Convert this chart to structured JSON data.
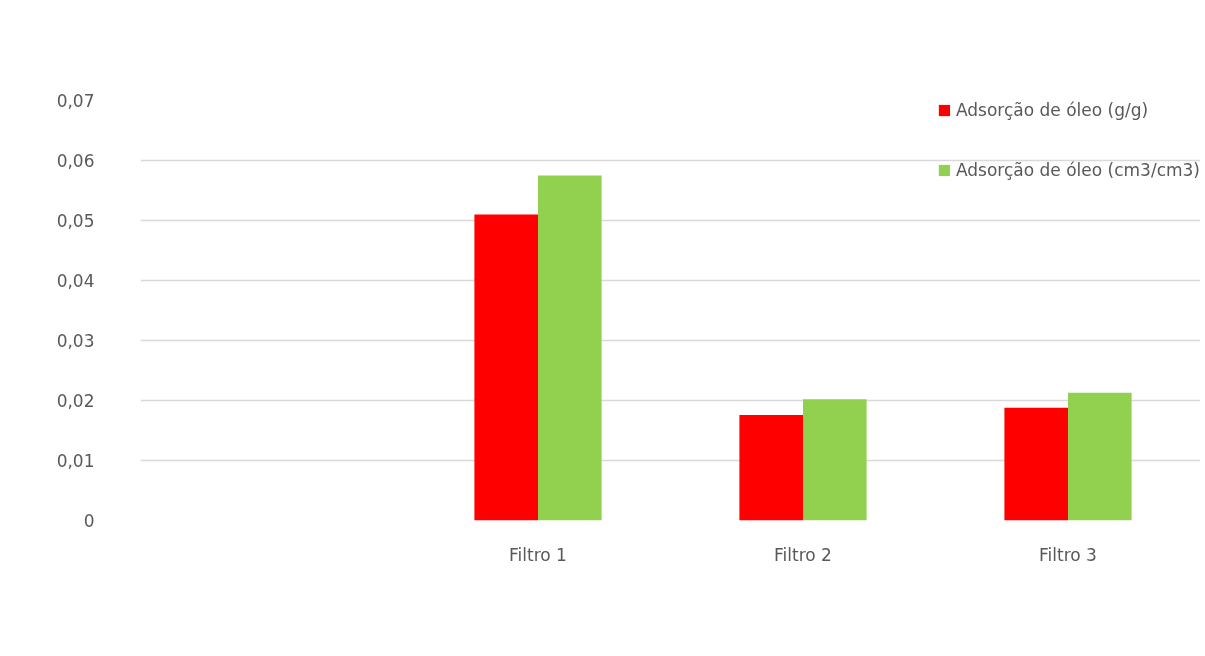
{
  "chart_data": {
    "type": "bar",
    "categories": [
      null,
      "Filtro 1",
      "Filtro 2",
      "Filtro 3"
    ],
    "series": [
      {
        "name": "Adsorção de óleo (g/g)",
        "color": "#ff0000",
        "values": [
          null,
          0.051,
          0.0176,
          0.0188
        ]
      },
      {
        "name": "Adsorção de óleo (cm3/cm3)",
        "color": "#92d050",
        "values": [
          null,
          0.0575,
          0.0202,
          0.0213
        ]
      }
    ],
    "ylim": [
      0,
      0.07
    ],
    "yticks": [
      {
        "value": 0,
        "label": "0"
      },
      {
        "value": 0.01,
        "label": "0,01"
      },
      {
        "value": 0.02,
        "label": "0,02"
      },
      {
        "value": 0.03,
        "label": "0,03"
      },
      {
        "value": 0.04,
        "label": "0,04"
      },
      {
        "value": 0.05,
        "label": "0,05"
      },
      {
        "value": 0.06,
        "label": "0,06"
      },
      {
        "value": 0.07,
        "label": "0,07"
      }
    ],
    "grid": "y",
    "legend": "top right"
  }
}
